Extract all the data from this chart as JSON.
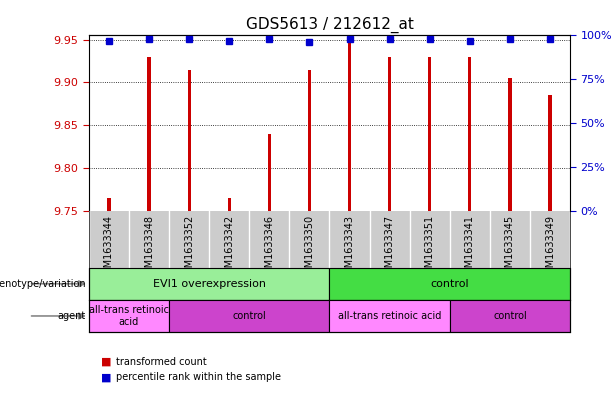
{
  "title": "GDS5613 / 212612_at",
  "samples": [
    "GSM1633344",
    "GSM1633348",
    "GSM1633352",
    "GSM1633342",
    "GSM1633346",
    "GSM1633350",
    "GSM1633343",
    "GSM1633347",
    "GSM1633351",
    "GSM1633341",
    "GSM1633345",
    "GSM1633349"
  ],
  "transformed_count": [
    9.765,
    9.93,
    9.915,
    9.765,
    9.84,
    9.915,
    9.95,
    9.93,
    9.93,
    9.93,
    9.905,
    9.885
  ],
  "percentile_rank": [
    97,
    98,
    98,
    97,
    98,
    96,
    98,
    98,
    98,
    97,
    98,
    98
  ],
  "ylim_left": [
    9.75,
    9.955
  ],
  "ylim_right": [
    0,
    100
  ],
  "yticks_left": [
    9.75,
    9.8,
    9.85,
    9.9,
    9.95
  ],
  "yticks_right": [
    0,
    25,
    50,
    75,
    100
  ],
  "bar_color": "#cc0000",
  "dot_color": "#0000cc",
  "bar_width": 0.08,
  "genotype_groups": [
    {
      "label": "EVI1 overexpression",
      "start": 0,
      "end": 6,
      "color": "#99ee99"
    },
    {
      "label": "control",
      "start": 6,
      "end": 12,
      "color": "#44dd44"
    }
  ],
  "agent_groups": [
    {
      "label": "all-trans retinoic\nacid",
      "start": 0,
      "end": 2,
      "color": "#ff88ff"
    },
    {
      "label": "control",
      "start": 2,
      "end": 6,
      "color": "#cc44cc"
    },
    {
      "label": "all-trans retinoic acid",
      "start": 6,
      "end": 9,
      "color": "#ff88ff"
    },
    {
      "label": "control",
      "start": 9,
      "end": 12,
      "color": "#cc44cc"
    }
  ],
  "grid_color": "#000000",
  "tick_label_bg": "#cccccc",
  "plot_bg": "#ffffff",
  "left_label_color": "#888888"
}
